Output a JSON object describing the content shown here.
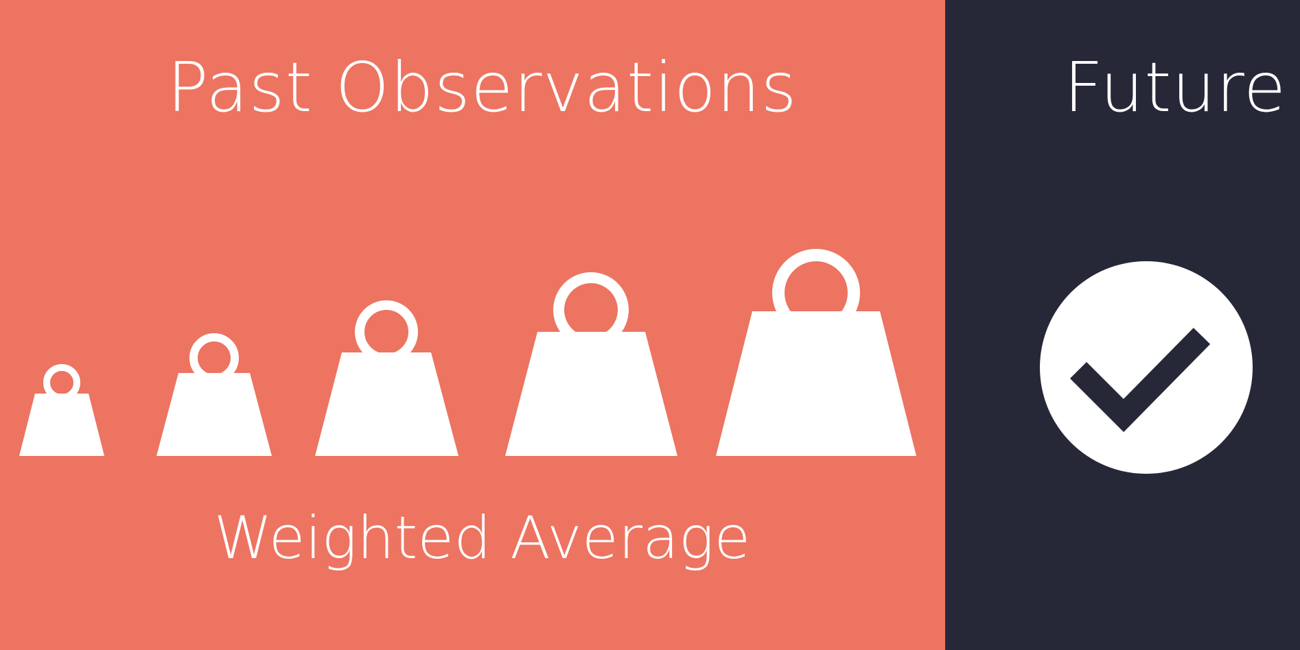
{
  "colors": {
    "past_background": "#ec7461",
    "future_background": "#262838",
    "foreground": "#ffffff"
  },
  "past": {
    "heading": "Past Observations",
    "caption": "Weighted Average",
    "weights": [
      {
        "name": "weight-1-icon",
        "relative_size": 1
      },
      {
        "name": "weight-2-icon",
        "relative_size": 2
      },
      {
        "name": "weight-3-icon",
        "relative_size": 3
      },
      {
        "name": "weight-4-icon",
        "relative_size": 4
      },
      {
        "name": "weight-5-icon",
        "relative_size": 5
      }
    ]
  },
  "future": {
    "heading": "Future",
    "icon": "check-circle-icon"
  }
}
